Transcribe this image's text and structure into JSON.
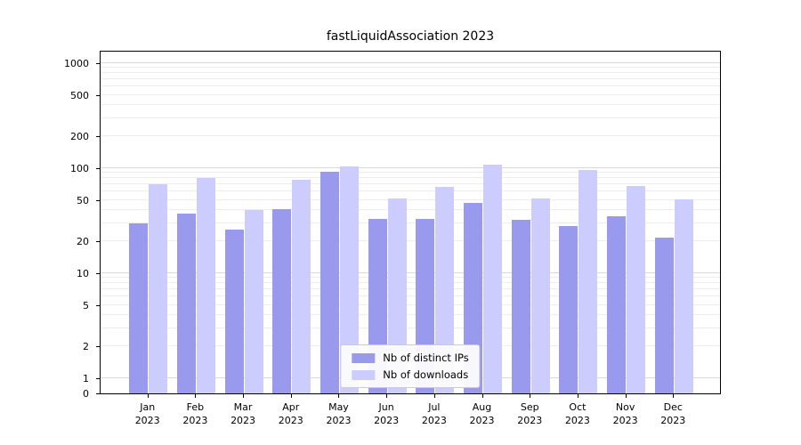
{
  "chart_data": {
    "type": "bar",
    "title": "fastLiquidAssociation 2023",
    "categories": [
      "Jan",
      "Feb",
      "Mar",
      "Apr",
      "May",
      "Jun",
      "Jul",
      "Aug",
      "Sep",
      "Oct",
      "Nov",
      "Dec"
    ],
    "category_year": "2023",
    "series": [
      {
        "name": "Nb of distinct IPs",
        "color": "#9999ee",
        "values": [
          30,
          37,
          26,
          41,
          92,
          33,
          33,
          47,
          32,
          28,
          35,
          22
        ]
      },
      {
        "name": "Nb of downloads",
        "color": "#ccccff",
        "values": [
          70,
          80,
          40,
          78,
          105,
          52,
          67,
          108,
          52,
          96,
          68,
          51
        ]
      }
    ],
    "y_scale": "symlog",
    "ylim": [
      0,
      1000
    ],
    "y_ticks": [
      0,
      1,
      2,
      5,
      10,
      20,
      50,
      100,
      200,
      500,
      1000
    ],
    "grid": true,
    "legend_position": "bottom-center-inside",
    "xlabel": "",
    "ylabel": ""
  }
}
